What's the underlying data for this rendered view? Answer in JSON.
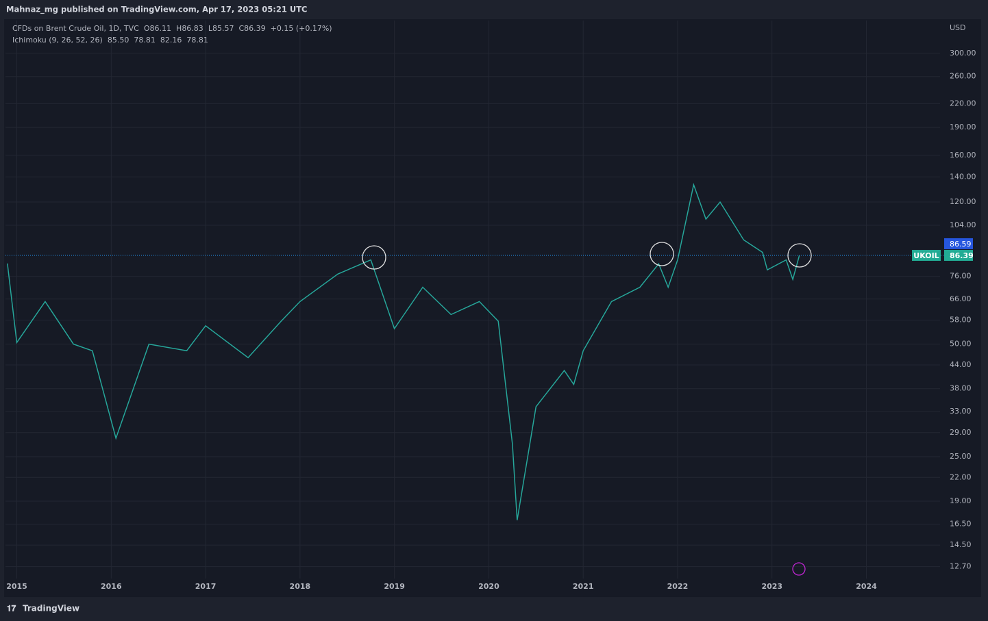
{
  "header": "Mahnaz_mg published on TradingView.com, Apr 17, 2023 05:21 UTC",
  "footer": "TradingView",
  "chart_data": {
    "type": "line",
    "title": "CFDs on Brent Crude Oil, 1D, TVC",
    "ohlc": [
      {
        "key": "O",
        "value": 86.11
      },
      {
        "key": "H",
        "value": 86.83
      },
      {
        "key": "L",
        "value": 85.57
      },
      {
        "key": "C",
        "value": 86.39
      }
    ],
    "change": "+0.15 (+0.17%)",
    "indicator": {
      "name": "Ichimoku (9, 26, 52, 26)",
      "values": [
        {
          "text": "85.50",
          "color": "#90caf9"
        },
        {
          "text": "78.81",
          "color": "#f5d76e"
        },
        {
          "text": "82.16",
          "color": "#43a047"
        },
        {
          "text": "78.81",
          "color": "#e53950"
        }
      ]
    },
    "currency": "USD",
    "log_scale": true,
    "grid": true,
    "series": [
      {
        "name": "UKOIL",
        "color": "#26a69a",
        "x": [
          2014.9,
          2015.0,
          2015.3,
          2015.6,
          2015.8,
          2016.05,
          2016.4,
          2016.8,
          2017.0,
          2017.45,
          2017.8,
          2018.0,
          2018.4,
          2018.75,
          2019.0,
          2019.3,
          2019.6,
          2019.9,
          2020.1,
          2020.25,
          2020.3,
          2020.5,
          2020.8,
          2020.9,
          2021.0,
          2021.3,
          2021.6,
          2021.8,
          2021.9,
          2022.0,
          2022.17,
          2022.3,
          2022.45,
          2022.7,
          2022.9,
          2022.95,
          2023.15,
          2023.22,
          2023.29
        ],
        "values": [
          82.2,
          50.5,
          65,
          50,
          48,
          28,
          50,
          48,
          56,
          46,
          57.6,
          65,
          77,
          84,
          55,
          71,
          60,
          65,
          57.6,
          27,
          16.9,
          34,
          42.5,
          39,
          48,
          65,
          71,
          82,
          71,
          84,
          133.5,
          108,
          120,
          95,
          88,
          79,
          84,
          74.5,
          86.39
        ]
      }
    ],
    "last_price": {
      "symbol": "UKOIL",
      "value": 86.39
    },
    "ask_price": 86.59,
    "xlim": [
      2014.88,
      2024.78
    ],
    "xticks": [
      2015,
      2016,
      2017,
      2018,
      2019,
      2020,
      2021,
      2022,
      2023,
      2024
    ],
    "ylim": [
      11.8,
      367
    ],
    "yticks": [
      {
        "value": 12.7,
        "label": "12.70"
      },
      {
        "value": 14.5,
        "label": "14.50"
      },
      {
        "value": 16.5,
        "label": "16.50"
      },
      {
        "value": 19,
        "label": "19.00"
      },
      {
        "value": 22,
        "label": "22.00"
      },
      {
        "value": 25,
        "label": "25.00"
      },
      {
        "value": 29,
        "label": "29.00"
      },
      {
        "value": 33,
        "label": "33.00"
      },
      {
        "value": 38,
        "label": "38.00"
      },
      {
        "value": 44,
        "label": "44.00"
      },
      {
        "value": 50,
        "label": "50.00"
      },
      {
        "value": 58,
        "label": "58.00"
      },
      {
        "value": 66,
        "label": "66.00"
      },
      {
        "value": 76,
        "label": "76.00"
      },
      {
        "value": 104,
        "label": "104.00"
      },
      {
        "value": 120,
        "label": "120.00"
      },
      {
        "value": 140,
        "label": "140.00"
      },
      {
        "value": 160,
        "label": "160.00"
      },
      {
        "value": 190,
        "label": "190.00"
      },
      {
        "value": 220,
        "label": "220.00"
      },
      {
        "value": 260,
        "label": "260.00"
      },
      {
        "value": 300,
        "label": "300.00"
      }
    ]
  }
}
